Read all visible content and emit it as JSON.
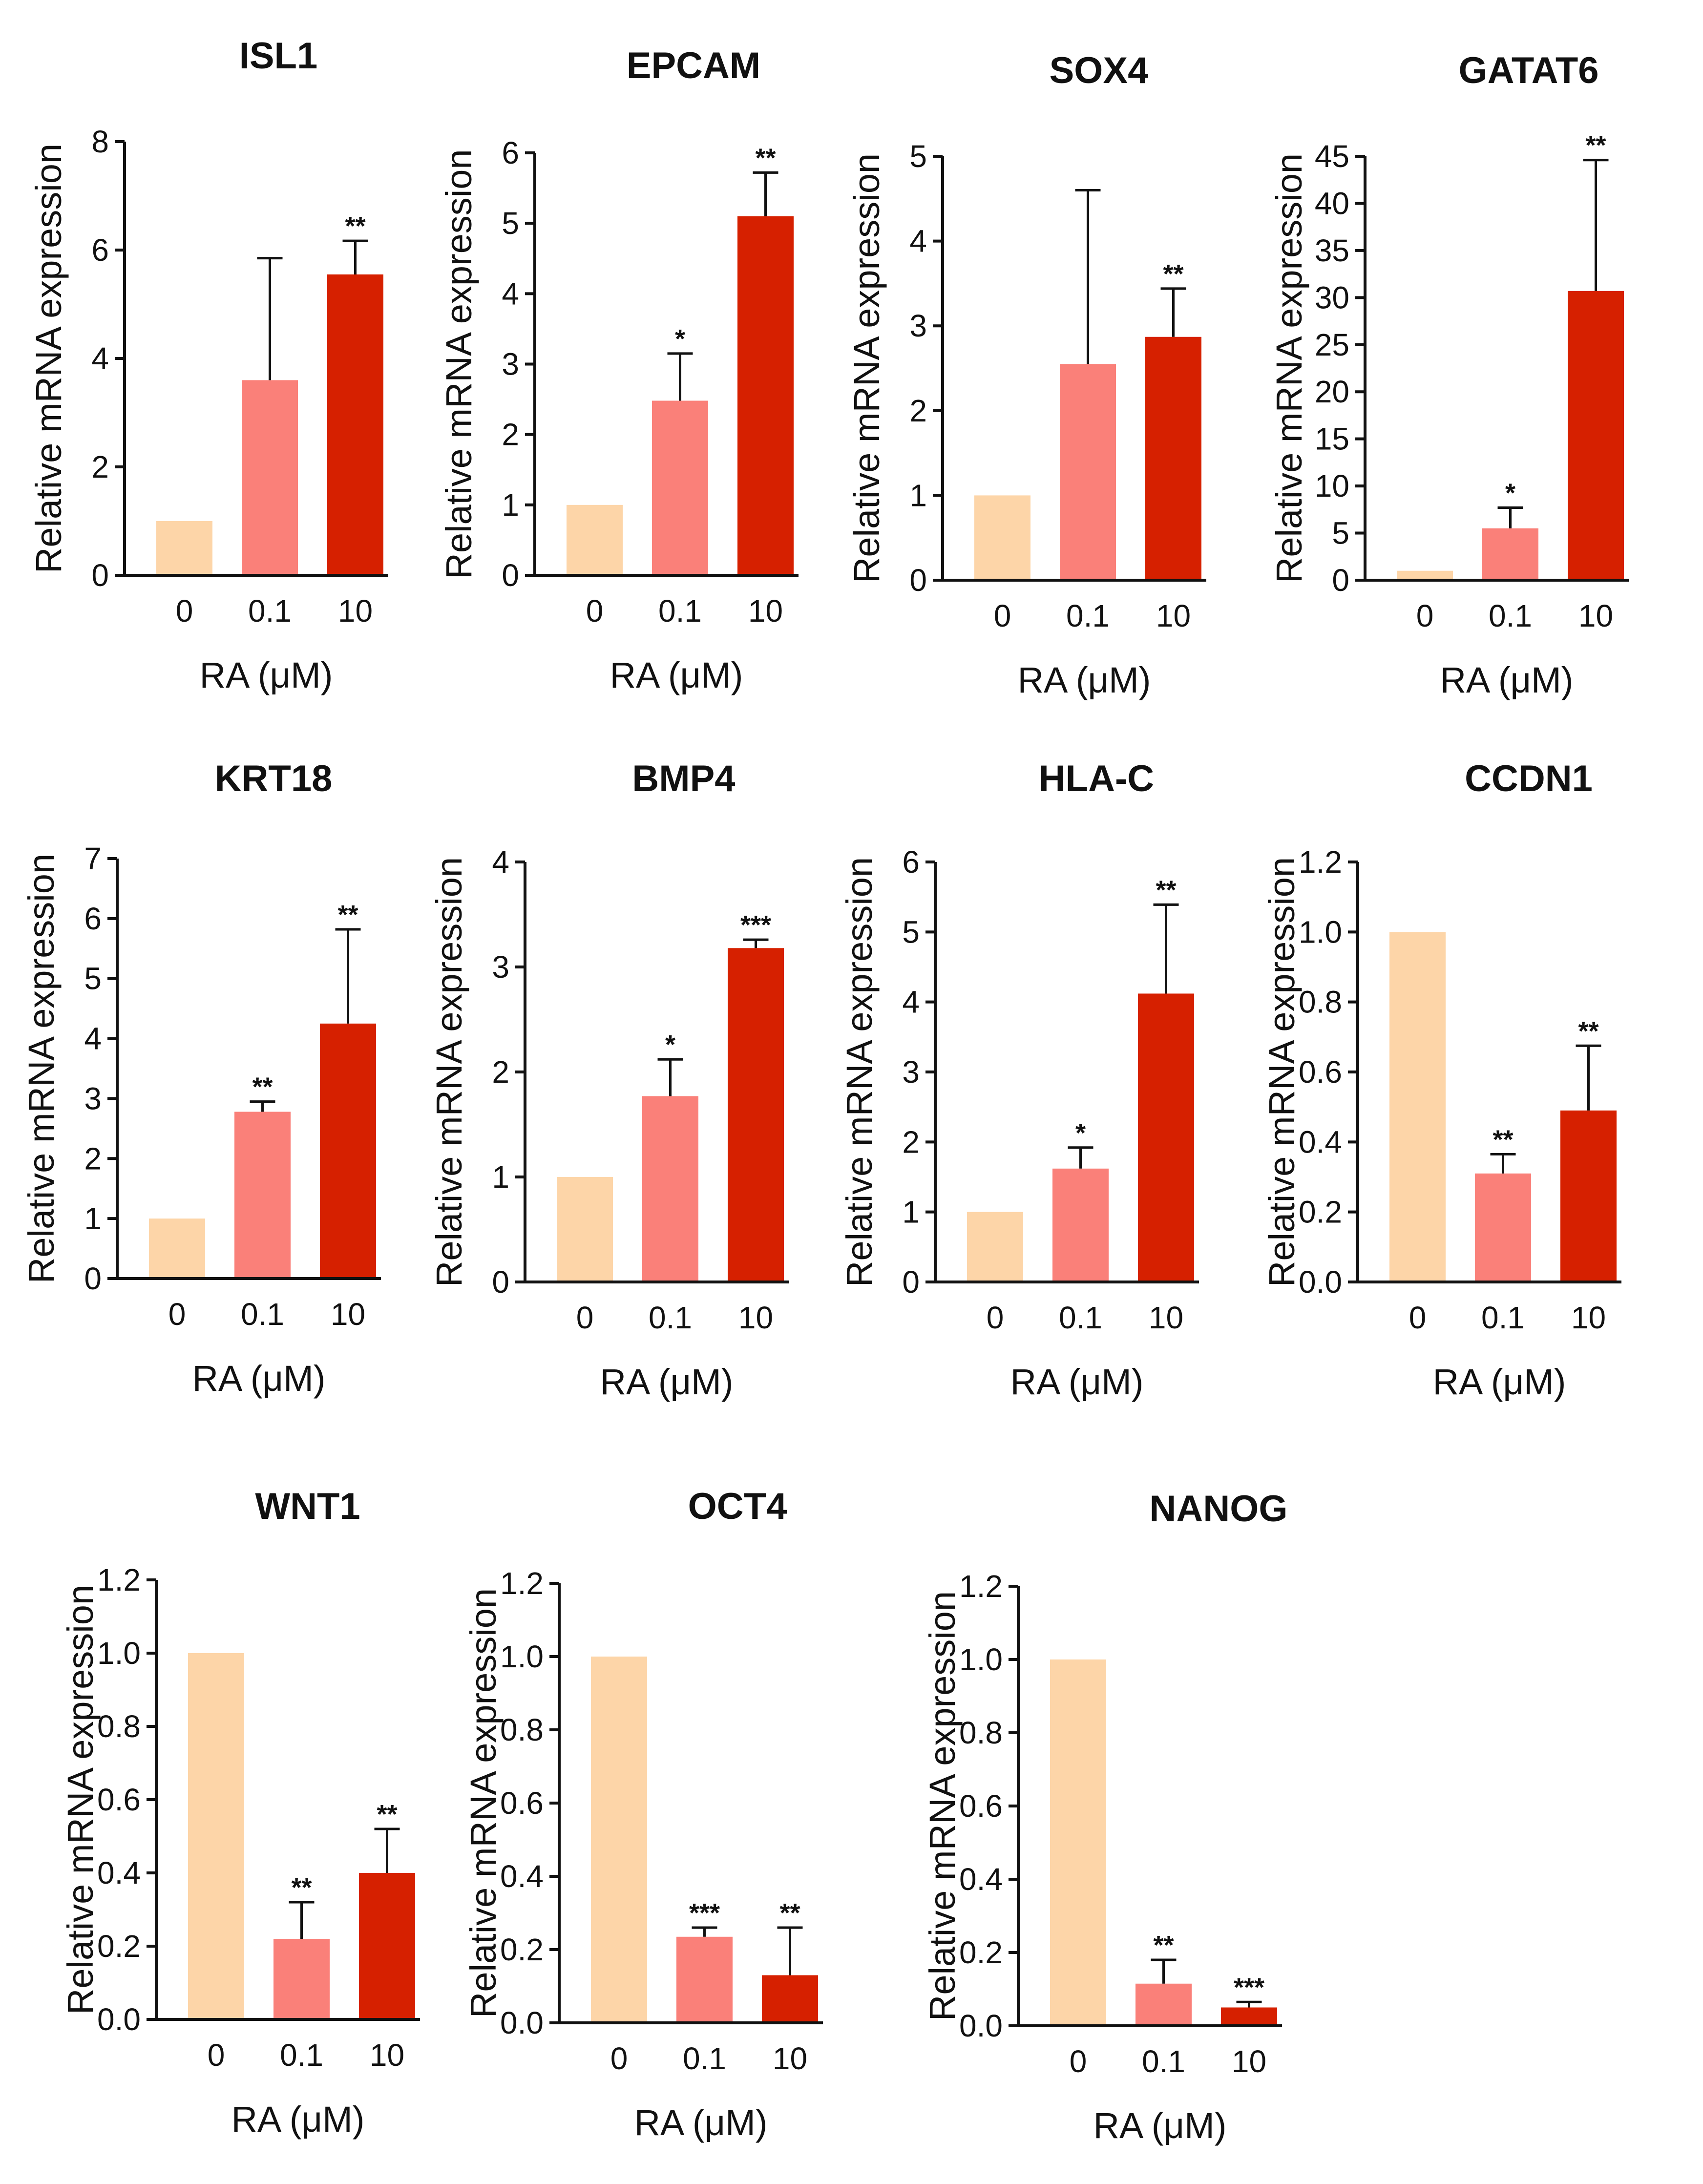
{
  "chart_data": [
    {
      "type": "bar",
      "title": "ISL1",
      "categories": [
        "0",
        "0.1",
        "10"
      ],
      "values": [
        1.0,
        3.6,
        5.55
      ],
      "errors": [
        0,
        2.25,
        0.62
      ],
      "significance": [
        "",
        "",
        "**"
      ],
      "ylim": [
        0,
        8
      ],
      "yticks": [
        "0",
        "2",
        "4",
        "6",
        "8"
      ],
      "xlabel": "RA (μM)",
      "ylabel": "Relative mRNA expression"
    },
    {
      "type": "bar",
      "title": "EPCAM",
      "categories": [
        "0",
        "0.1",
        "10"
      ],
      "values": [
        1.0,
        2.48,
        5.1
      ],
      "errors": [
        0,
        0.67,
        0.62
      ],
      "significance": [
        "",
        "*",
        "**"
      ],
      "ylim": [
        0,
        6
      ],
      "yticks": [
        "0",
        "1",
        "2",
        "3",
        "4",
        "5",
        "6"
      ],
      "xlabel": "RA (μM)",
      "ylabel": "Relative mRNA expression"
    },
    {
      "type": "bar",
      "title": "SOX4",
      "categories": [
        "0",
        "0.1",
        "10"
      ],
      "values": [
        1.0,
        2.55,
        2.87
      ],
      "errors": [
        0,
        2.05,
        0.57
      ],
      "significance": [
        "",
        "",
        "**"
      ],
      "ylim": [
        0,
        5
      ],
      "yticks": [
        "0",
        "1",
        "2",
        "3",
        "4",
        "5"
      ],
      "xlabel": "RA (μM)",
      "ylabel": "Relative mRNA expression"
    },
    {
      "type": "bar",
      "title": "GATAT6",
      "categories": [
        "0",
        "0.1",
        "10"
      ],
      "values": [
        1.0,
        5.5,
        30.7
      ],
      "errors": [
        0,
        2.2,
        13.9
      ],
      "significance": [
        "",
        "*",
        "**"
      ],
      "ylim": [
        0,
        45
      ],
      "yticks": [
        "0",
        "5",
        "10",
        "15",
        "20",
        "25",
        "30",
        "35",
        "40",
        "45"
      ],
      "xlabel": "RA (μM)",
      "ylabel": "Relative mRNA expression"
    },
    {
      "type": "bar",
      "title": "KRT18",
      "categories": [
        "0",
        "0.1",
        "10"
      ],
      "values": [
        1.0,
        2.78,
        4.25
      ],
      "errors": [
        0,
        0.17,
        1.57
      ],
      "significance": [
        "",
        "**",
        "**"
      ],
      "ylim": [
        0,
        7
      ],
      "yticks": [
        "0",
        "1",
        "2",
        "3",
        "4",
        "5",
        "6",
        "7"
      ],
      "xlabel": "RA (μM)",
      "ylabel": "Relative mRNA expression"
    },
    {
      "type": "bar",
      "title": "BMP4",
      "categories": [
        "0",
        "0.1",
        "10"
      ],
      "values": [
        1.0,
        1.77,
        3.18
      ],
      "errors": [
        0,
        0.35,
        0.08
      ],
      "significance": [
        "",
        "*",
        "***"
      ],
      "ylim": [
        0,
        4
      ],
      "yticks": [
        "0",
        "1",
        "2",
        "3",
        "4"
      ],
      "xlabel": "RA (μM)",
      "ylabel": "Relative mRNA expression"
    },
    {
      "type": "bar",
      "title": "HLA-C",
      "categories": [
        "0",
        "0.1",
        "10"
      ],
      "values": [
        1.0,
        1.62,
        4.12
      ],
      "errors": [
        0,
        0.3,
        1.27
      ],
      "significance": [
        "",
        "*",
        "**"
      ],
      "ylim": [
        0,
        6
      ],
      "yticks": [
        "0",
        "1",
        "2",
        "3",
        "4",
        "5",
        "6"
      ],
      "xlabel": "RA (μM)",
      "ylabel": "Relative mRNA expression"
    },
    {
      "type": "bar",
      "title": "CCDN1",
      "categories": [
        "0",
        "0.1",
        "10"
      ],
      "values": [
        1.0,
        0.31,
        0.49
      ],
      "errors": [
        0,
        0.055,
        0.185
      ],
      "significance": [
        "",
        "**",
        "**"
      ],
      "ylim": [
        0,
        1.2
      ],
      "yticks": [
        "0.0",
        "0.2",
        "0.4",
        "0.6",
        "0.8",
        "1.0",
        "1.2"
      ],
      "xlabel": "RA (μM)",
      "ylabel": "Relative mRNA expression"
    },
    {
      "type": "bar",
      "title": "WNT1",
      "categories": [
        "0",
        "0.1",
        "10"
      ],
      "values": [
        1.0,
        0.22,
        0.4
      ],
      "errors": [
        0,
        0.1,
        0.12
      ],
      "significance": [
        "",
        "**",
        "**"
      ],
      "ylim": [
        0,
        1.2
      ],
      "yticks": [
        "0.0",
        "0.2",
        "0.4",
        "0.6",
        "0.8",
        "1.0",
        "1.2"
      ],
      "xlabel": "RA (μM)",
      "ylabel": "Relative mRNA expression"
    },
    {
      "type": "bar",
      "title": "OCT4",
      "categories": [
        "0",
        "0.1",
        "10"
      ],
      "values": [
        1.0,
        0.235,
        0.13
      ],
      "errors": [
        0,
        0.025,
        0.13
      ],
      "significance": [
        "",
        "***",
        "**"
      ],
      "ylim": [
        0,
        1.2
      ],
      "yticks": [
        "0.0",
        "0.2",
        "0.4",
        "0.6",
        "0.8",
        "1.0",
        "1.2"
      ],
      "xlabel": "RA (μM)",
      "ylabel": "Relative mRNA expression"
    },
    {
      "type": "bar",
      "title": "NANOG",
      "categories": [
        "0",
        "0.1",
        "10"
      ],
      "values": [
        1.0,
        0.115,
        0.05
      ],
      "errors": [
        0,
        0.065,
        0.015
      ],
      "significance": [
        "",
        "**",
        "***"
      ],
      "ylim": [
        0,
        1.2
      ],
      "yticks": [
        "0.0",
        "0.2",
        "0.4",
        "0.6",
        "0.8",
        "1.0",
        "1.2"
      ],
      "xlabel": "RA (μM)",
      "ylabel": "Relative mRNA expression"
    }
  ],
  "colors": {
    "bar_0": "#fdd5a8",
    "bar_0_1": "#fa8079",
    "bar_10": "#d62000",
    "axis": "#111111"
  }
}
